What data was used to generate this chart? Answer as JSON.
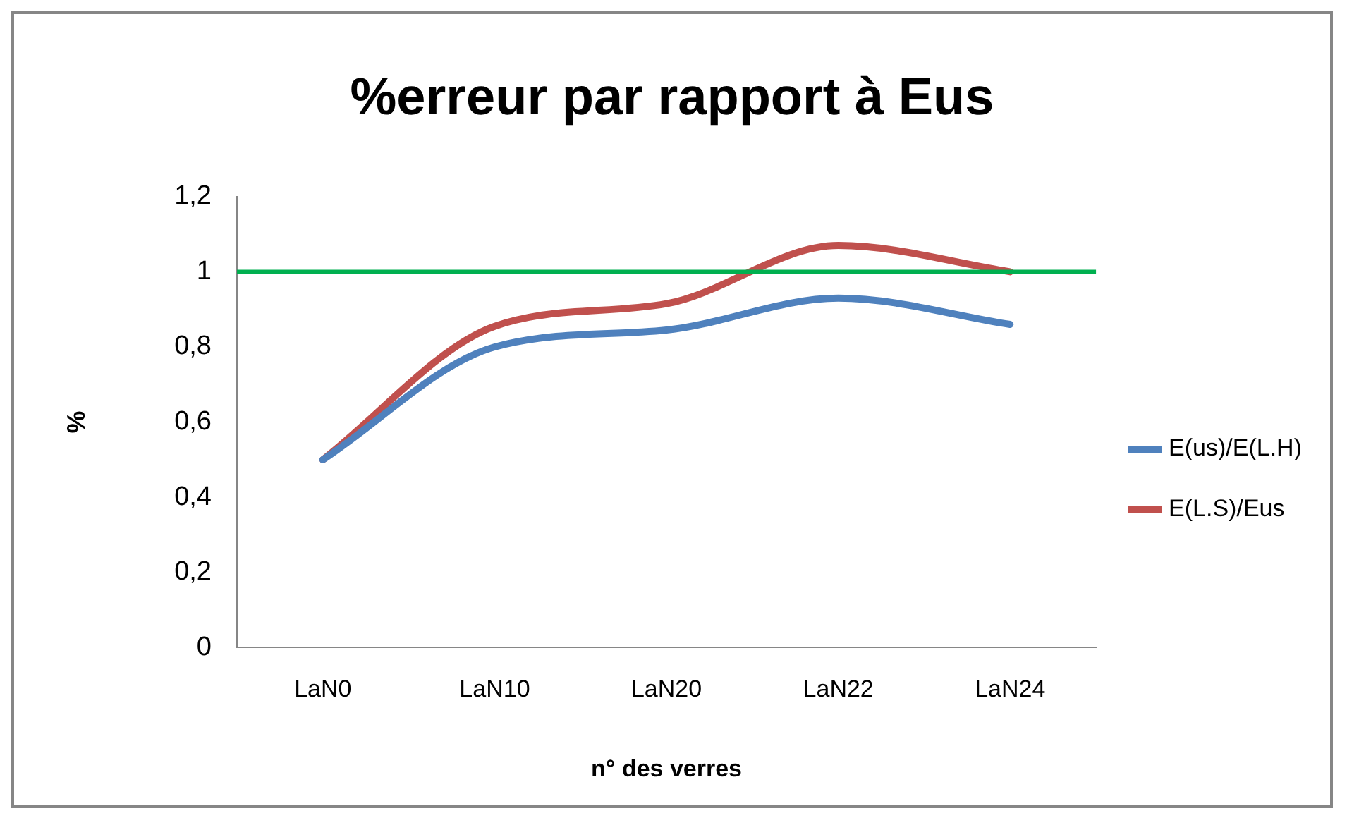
{
  "chart_data": {
    "type": "line",
    "title": "%erreur par rapport à Eus",
    "xlabel": "n° des verres",
    "ylabel": "%",
    "categories": [
      "LaN0",
      "LaN10",
      "LaN20",
      "LaN22",
      "LaN24"
    ],
    "series": [
      {
        "name": "E(us)/E(L.H)",
        "color": "#4f81bd",
        "values": [
          0.5,
          0.8,
          0.845,
          0.93,
          0.86
        ]
      },
      {
        "name": "E(L.S)/Eus",
        "color": "#c0504d",
        "values": [
          0.5,
          0.855,
          0.915,
          1.07,
          1.0
        ]
      }
    ],
    "ylim": [
      0,
      1.2
    ],
    "yticks": [
      0,
      {
        "value": 0.2,
        "label": "0,2"
      },
      {
        "value": 0.4,
        "label": "0,4"
      },
      {
        "value": 0.6,
        "label": "0,6"
      },
      {
        "value": 0.8,
        "label": "0,8"
      },
      1,
      {
        "value": 1.2,
        "label": "1,2"
      }
    ],
    "ref_lines": [
      {
        "axis": "y",
        "value": 1,
        "color": "#00b050"
      }
    ],
    "grid": false,
    "legend": "right",
    "marker": "none",
    "line_style": "solid"
  }
}
